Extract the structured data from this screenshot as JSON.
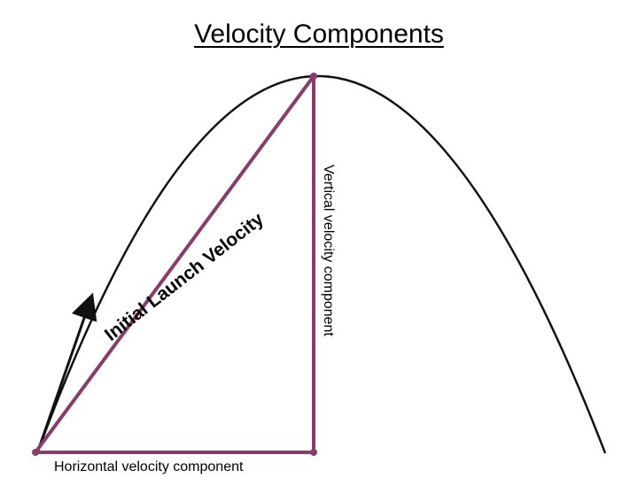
{
  "title": "Velocity Components",
  "labels": {
    "launch_velocity": "Initial Launch Velocity",
    "vertical_component": "Vertical velocity component",
    "horizontal_component": "Horizontal velocity component"
  },
  "colors": {
    "triangle": "#8a3b6b",
    "curve": "#111111",
    "text": "#000000"
  }
}
